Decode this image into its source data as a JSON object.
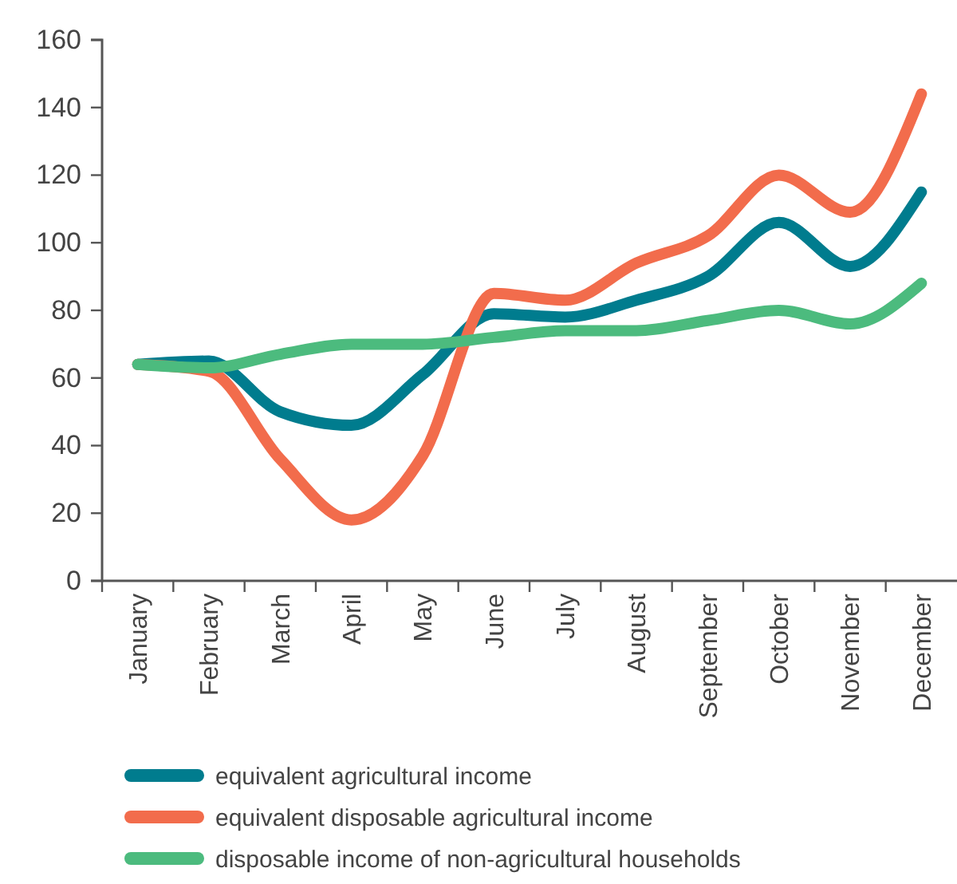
{
  "chart_data": {
    "type": "line",
    "categories": [
      "January",
      "February",
      "March",
      "April",
      "May",
      "June",
      "July",
      "August",
      "September",
      "October",
      "November",
      "December"
    ],
    "series": [
      {
        "name": "equivalent agricultural income",
        "color": "#007c8e",
        "values": [
          64,
          65,
          50,
          46,
          61,
          79,
          78,
          83,
          90,
          106,
          93,
          115
        ]
      },
      {
        "name": "equivalent disposable agricultural income",
        "color": "#f26c4c",
        "values": [
          64,
          62,
          36,
          18,
          37,
          85,
          83,
          94,
          102,
          120,
          109,
          144
        ]
      },
      {
        "name": "disposable income of non-agricultural households",
        "color": "#4cbb7e",
        "values": [
          64,
          63,
          67,
          70,
          70,
          72,
          74,
          74,
          77,
          80,
          76,
          88
        ]
      }
    ],
    "ylim": [
      0,
      160
    ],
    "yticks": [
      0,
      20,
      40,
      60,
      80,
      100,
      120,
      140,
      160
    ],
    "legend": "bottom"
  }
}
